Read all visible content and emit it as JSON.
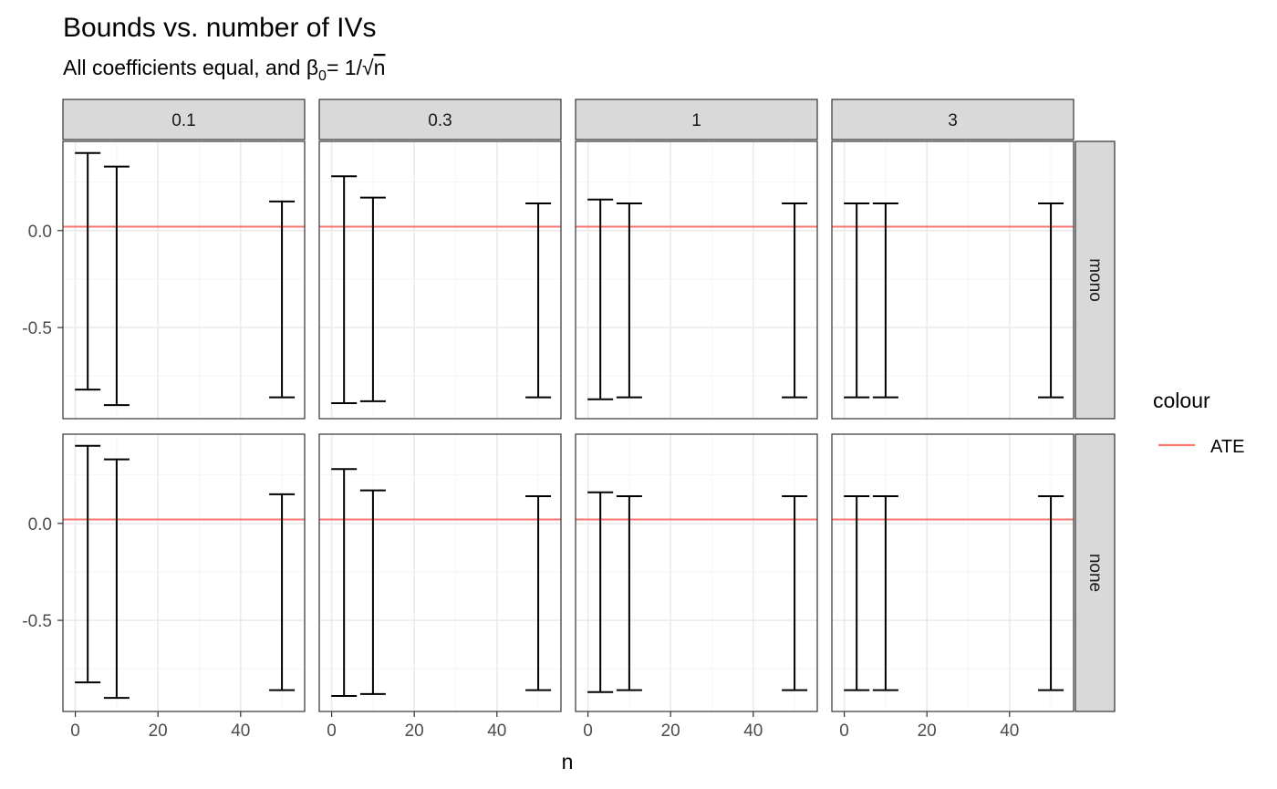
{
  "chart_data": {
    "type": "errorbar",
    "title": "Bounds vs. number of IVs",
    "subtitle": {
      "prefix": "All coefficients equal, and ",
      "beta": "β",
      "sub": "0",
      "eq": "= 1/",
      "root": "√",
      "n": "n"
    },
    "xlabel": "n",
    "ylabel": "",
    "xlim": [
      -3,
      55.5
    ],
    "ylim": [
      -0.97,
      0.46
    ],
    "x_ticks": [
      0,
      20,
      40
    ],
    "y_ticks": [
      0,
      -0.5
    ],
    "y_tick_labels": [
      "0.0",
      "-0.5"
    ],
    "x_grid_minor": [
      10,
      30,
      50
    ],
    "y_grid_minor": [
      0.25,
      -0.25,
      -0.75
    ],
    "grid": true,
    "col_facets": [
      "0.1",
      "0.3",
      "1",
      "3"
    ],
    "row_facets": [
      "mono",
      "none"
    ],
    "ate_value": 0.02,
    "legend": {
      "title": "colour",
      "entries": [
        {
          "label": "ATE",
          "color": "#f8766d"
        }
      ],
      "position": "right"
    },
    "colors": {
      "ate": "#f8766d",
      "bars": "#000000",
      "strip_fill": "#d9d9d9",
      "panel_border": "#333333",
      "grid_major": "#ebebeb",
      "grid_minor": "#f5f5f5"
    },
    "panels": [
      {
        "row": "mono",
        "col": "0.1",
        "bars": [
          {
            "x": 3,
            "low": -0.82,
            "high": 0.4
          },
          {
            "x": 10,
            "low": -0.9,
            "high": 0.33
          },
          {
            "x": 50,
            "low": -0.86,
            "high": 0.15
          }
        ]
      },
      {
        "row": "mono",
        "col": "0.3",
        "bars": [
          {
            "x": 3,
            "low": -0.89,
            "high": 0.28
          },
          {
            "x": 10,
            "low": -0.88,
            "high": 0.17
          },
          {
            "x": 50,
            "low": -0.86,
            "high": 0.14
          }
        ]
      },
      {
        "row": "mono",
        "col": "1",
        "bars": [
          {
            "x": 3,
            "low": -0.87,
            "high": 0.16
          },
          {
            "x": 10,
            "low": -0.86,
            "high": 0.14
          },
          {
            "x": 50,
            "low": -0.86,
            "high": 0.14
          }
        ]
      },
      {
        "row": "mono",
        "col": "3",
        "bars": [
          {
            "x": 3,
            "low": -0.86,
            "high": 0.14
          },
          {
            "x": 10,
            "low": -0.86,
            "high": 0.14
          },
          {
            "x": 50,
            "low": -0.86,
            "high": 0.14
          }
        ]
      },
      {
        "row": "none",
        "col": "0.1",
        "bars": [
          {
            "x": 3,
            "low": -0.82,
            "high": 0.4
          },
          {
            "x": 10,
            "low": -0.9,
            "high": 0.33
          },
          {
            "x": 50,
            "low": -0.86,
            "high": 0.15
          }
        ]
      },
      {
        "row": "none",
        "col": "0.3",
        "bars": [
          {
            "x": 3,
            "low": -0.89,
            "high": 0.28
          },
          {
            "x": 10,
            "low": -0.88,
            "high": 0.17
          },
          {
            "x": 50,
            "low": -0.86,
            "high": 0.14
          }
        ]
      },
      {
        "row": "none",
        "col": "1",
        "bars": [
          {
            "x": 3,
            "low": -0.87,
            "high": 0.16
          },
          {
            "x": 10,
            "low": -0.86,
            "high": 0.14
          },
          {
            "x": 50,
            "low": -0.86,
            "high": 0.14
          }
        ]
      },
      {
        "row": "none",
        "col": "3",
        "bars": [
          {
            "x": 3,
            "low": -0.86,
            "high": 0.14
          },
          {
            "x": 10,
            "low": -0.86,
            "high": 0.14
          },
          {
            "x": 50,
            "low": -0.86,
            "high": 0.14
          }
        ]
      }
    ]
  }
}
